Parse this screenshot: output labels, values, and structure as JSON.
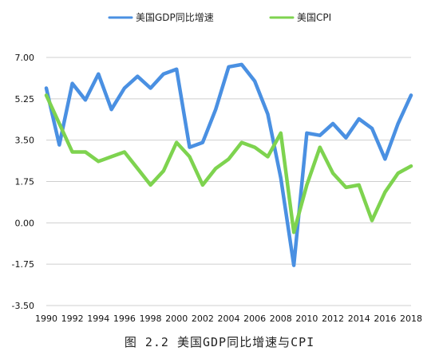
{
  "caption": "图 2.2 美国GDP同比增速与CPI",
  "chart_data": {
    "type": "line",
    "x": [
      1990,
      1991,
      1992,
      1993,
      1994,
      1995,
      1996,
      1997,
      1998,
      1999,
      2000,
      2001,
      2002,
      2003,
      2004,
      2005,
      2006,
      2007,
      2008,
      2009,
      2010,
      2011,
      2012,
      2013,
      2014,
      2015,
      2016,
      2017,
      2018
    ],
    "xticks": [
      "1990",
      "1992",
      "1994",
      "1996",
      "1998",
      "2000",
      "2002",
      "2004",
      "2006",
      "2008",
      "2010",
      "2012",
      "2014",
      "2016",
      "2018"
    ],
    "yticks": [
      "7.00",
      "5.25",
      "3.50",
      "1.75",
      "0.00",
      "-1.75",
      "-3.50"
    ],
    "ylim": [
      -3.5,
      7.0
    ],
    "grid": true,
    "legend_position": "top",
    "series": [
      {
        "name": "美国GDP同比增速",
        "color": "#4a90e2",
        "values": [
          5.7,
          3.3,
          5.9,
          5.2,
          6.3,
          4.8,
          5.7,
          6.2,
          5.7,
          6.3,
          6.5,
          3.2,
          3.4,
          4.8,
          6.6,
          6.7,
          6.0,
          4.6,
          1.9,
          -1.8,
          3.8,
          3.7,
          4.2,
          3.6,
          4.4,
          4.0,
          2.7,
          4.2,
          5.4
        ]
      },
      {
        "name": "美国CPI",
        "color": "#7ed34f",
        "values": [
          5.4,
          4.2,
          3.0,
          3.0,
          2.6,
          2.8,
          3.0,
          2.3,
          1.6,
          2.2,
          3.4,
          2.8,
          1.6,
          2.3,
          2.7,
          3.4,
          3.2,
          2.8,
          3.8,
          -0.4,
          1.6,
          3.2,
          2.1,
          1.5,
          1.6,
          0.1,
          1.3,
          2.1,
          2.4
        ]
      }
    ]
  }
}
